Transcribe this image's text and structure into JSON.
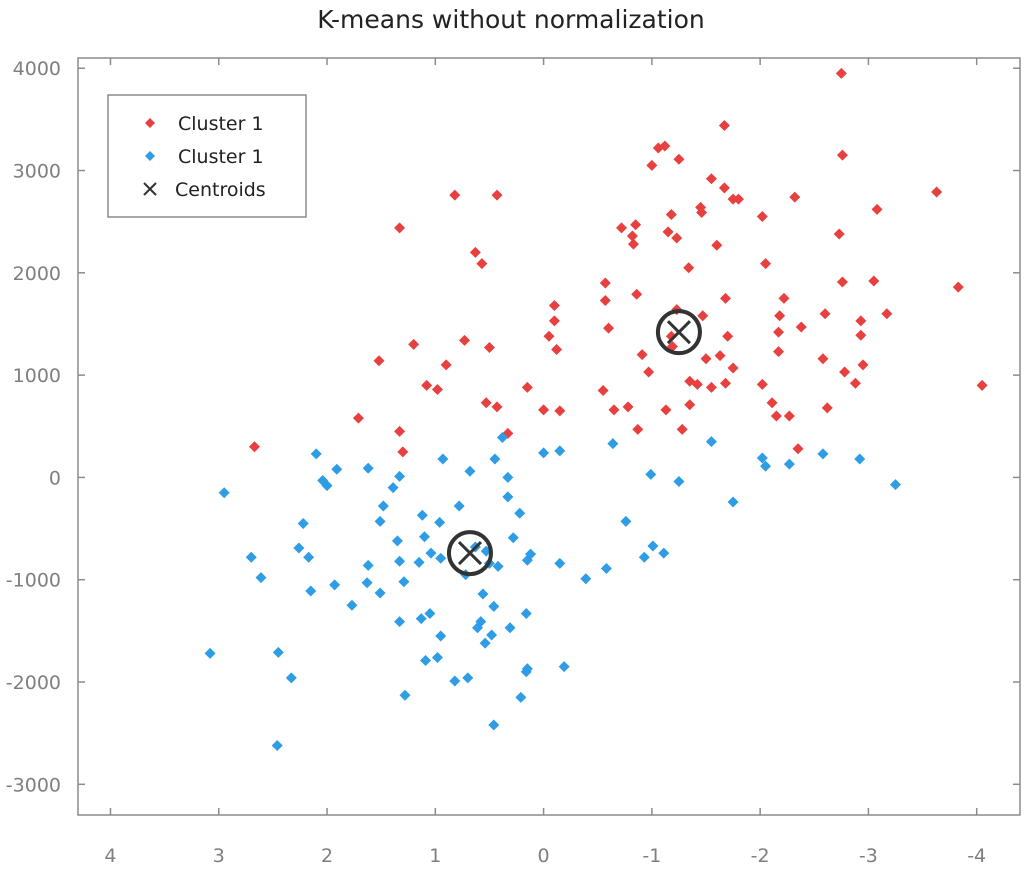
{
  "chart_data": {
    "type": "scatter",
    "title": "K-means without normalization",
    "xlabel": "",
    "ylabel": "",
    "xlim": [
      4.3,
      -4.4
    ],
    "ylim": [
      -3300,
      4100
    ],
    "x_ticks": [
      4,
      3,
      2,
      1,
      0,
      -1,
      -2,
      -3,
      -4
    ],
    "x_tick_labels": [
      "4",
      "3",
      "2",
      "1",
      "0",
      "-1",
      "-2",
      "-3",
      "-4"
    ],
    "y_ticks": [
      -3000,
      -2000,
      -1000,
      0,
      1000,
      2000,
      3000,
      4000
    ],
    "y_tick_labels": [
      "-3000",
      "-2000",
      "-1000",
      "0",
      "1000",
      "2000",
      "3000",
      "4000"
    ],
    "grid": false,
    "legend_position": "top-left",
    "series": [
      {
        "name": "Cluster 1",
        "color": "#e8403f",
        "marker": "diamond",
        "points": [
          [
            2.67,
            300
          ],
          [
            1.71,
            580
          ],
          [
            1.52,
            1140
          ],
          [
            1.33,
            2440
          ],
          [
            1.33,
            450
          ],
          [
            1.3,
            250
          ],
          [
            1.2,
            1300
          ],
          [
            1.08,
            900
          ],
          [
            0.98,
            860
          ],
          [
            0.9,
            1100
          ],
          [
            0.82,
            2760
          ],
          [
            0.73,
            1340
          ],
          [
            0.63,
            2200
          ],
          [
            0.57,
            2090
          ],
          [
            0.53,
            730
          ],
          [
            0.5,
            1270
          ],
          [
            0.43,
            2760
          ],
          [
            0.43,
            690
          ],
          [
            0.33,
            430
          ],
          [
            0.15,
            880
          ],
          [
            0.0,
            660
          ],
          [
            -0.05,
            1380
          ],
          [
            -0.1,
            1680
          ],
          [
            -0.1,
            1530
          ],
          [
            -0.12,
            1250
          ],
          [
            -0.15,
            650
          ],
          [
            -0.55,
            850
          ],
          [
            -0.57,
            1900
          ],
          [
            -0.57,
            1730
          ],
          [
            -0.6,
            1460
          ],
          [
            -0.65,
            660
          ],
          [
            -0.72,
            2440
          ],
          [
            -0.78,
            690
          ],
          [
            -0.82,
            2360
          ],
          [
            -0.83,
            2280
          ],
          [
            -0.85,
            2470
          ],
          [
            -0.86,
            1790
          ],
          [
            -0.87,
            470
          ],
          [
            -0.91,
            1200
          ],
          [
            -0.97,
            1030
          ],
          [
            -1.0,
            3050
          ],
          [
            -1.06,
            3220
          ],
          [
            -1.12,
            3240
          ],
          [
            -1.13,
            660
          ],
          [
            -1.15,
            2400
          ],
          [
            -1.18,
            2570
          ],
          [
            -1.18,
            1380
          ],
          [
            -1.19,
            1280
          ],
          [
            -1.23,
            1640
          ],
          [
            -1.23,
            2340
          ],
          [
            -1.25,
            3110
          ],
          [
            -1.28,
            470
          ],
          [
            -1.34,
            2050
          ],
          [
            -1.35,
            940
          ],
          [
            -1.35,
            710
          ],
          [
            -1.42,
            910
          ],
          [
            -1.45,
            2640
          ],
          [
            -1.46,
            2590
          ],
          [
            -1.47,
            1580
          ],
          [
            -1.5,
            1160
          ],
          [
            -1.55,
            2920
          ],
          [
            -1.55,
            880
          ],
          [
            -1.6,
            2270
          ],
          [
            -1.63,
            1190
          ],
          [
            -1.67,
            3440
          ],
          [
            -1.67,
            2830
          ],
          [
            -1.68,
            1750
          ],
          [
            -1.68,
            920
          ],
          [
            -1.7,
            1380
          ],
          [
            -1.75,
            2720
          ],
          [
            -1.75,
            1070
          ],
          [
            -1.8,
            2720
          ],
          [
            -2.02,
            2550
          ],
          [
            -2.02,
            910
          ],
          [
            -2.05,
            2090
          ],
          [
            -2.11,
            730
          ],
          [
            -2.15,
            600
          ],
          [
            -2.17,
            1420
          ],
          [
            -2.17,
            1230
          ],
          [
            -2.18,
            1580
          ],
          [
            -2.22,
            1750
          ],
          [
            -2.27,
            600
          ],
          [
            -2.32,
            2740
          ],
          [
            -2.35,
            280
          ],
          [
            -2.38,
            1470
          ],
          [
            -2.58,
            1160
          ],
          [
            -2.6,
            1600
          ],
          [
            -2.62,
            680
          ],
          [
            -2.73,
            2380
          ],
          [
            -2.75,
            3950
          ],
          [
            -2.76,
            3150
          ],
          [
            -2.76,
            1910
          ],
          [
            -2.78,
            1030
          ],
          [
            -2.88,
            920
          ],
          [
            -2.93,
            1390
          ],
          [
            -2.93,
            1530
          ],
          [
            -2.95,
            1100
          ],
          [
            -3.05,
            1920
          ],
          [
            -3.08,
            2620
          ],
          [
            -3.17,
            1600
          ],
          [
            -3.63,
            2790
          ],
          [
            -3.83,
            1860
          ],
          [
            -4.05,
            900
          ]
        ]
      },
      {
        "name": "Cluster 1",
        "color": "#2e9de5",
        "marker": "diamond",
        "points": [
          [
            3.08,
            -1720
          ],
          [
            2.95,
            -150
          ],
          [
            2.7,
            -780
          ],
          [
            2.61,
            -980
          ],
          [
            2.46,
            -2620
          ],
          [
            2.45,
            -1710
          ],
          [
            2.33,
            -1960
          ],
          [
            2.26,
            -690
          ],
          [
            2.22,
            -450
          ],
          [
            2.17,
            -780
          ],
          [
            2.15,
            -1110
          ],
          [
            2.1,
            230
          ],
          [
            2.04,
            -30
          ],
          [
            2.0,
            -80
          ],
          [
            1.93,
            -1050
          ],
          [
            1.91,
            80
          ],
          [
            1.77,
            -1250
          ],
          [
            1.63,
            -1030
          ],
          [
            1.62,
            -860
          ],
          [
            1.62,
            90
          ],
          [
            1.51,
            -1130
          ],
          [
            1.51,
            -430
          ],
          [
            1.48,
            -280
          ],
          [
            1.39,
            -100
          ],
          [
            1.35,
            -620
          ],
          [
            1.33,
            -1410
          ],
          [
            1.33,
            -820
          ],
          [
            1.33,
            10
          ],
          [
            1.29,
            -1020
          ],
          [
            1.28,
            -2130
          ],
          [
            1.15,
            -830
          ],
          [
            1.13,
            -1380
          ],
          [
            1.12,
            -370
          ],
          [
            1.1,
            -580
          ],
          [
            1.09,
            -1790
          ],
          [
            1.05,
            -1330
          ],
          [
            1.04,
            -740
          ],
          [
            0.98,
            -1760
          ],
          [
            0.96,
            -440
          ],
          [
            0.95,
            -1550
          ],
          [
            0.95,
            -790
          ],
          [
            0.93,
            180
          ],
          [
            0.82,
            -1990
          ],
          [
            0.78,
            -280
          ],
          [
            0.72,
            -950
          ],
          [
            0.7,
            -1960
          ],
          [
            0.68,
            60
          ],
          [
            0.63,
            -680
          ],
          [
            0.61,
            -1470
          ],
          [
            0.58,
            -1410
          ],
          [
            0.56,
            -1140
          ],
          [
            0.54,
            -1620
          ],
          [
            0.53,
            -720
          ],
          [
            0.5,
            -840
          ],
          [
            0.48,
            -1540
          ],
          [
            0.46,
            -2420
          ],
          [
            0.46,
            -1260
          ],
          [
            0.45,
            180
          ],
          [
            0.42,
            -870
          ],
          [
            0.38,
            390
          ],
          [
            0.33,
            -190
          ],
          [
            0.33,
            0
          ],
          [
            0.31,
            -1470
          ],
          [
            0.28,
            -590
          ],
          [
            0.22,
            -350
          ],
          [
            0.21,
            -2150
          ],
          [
            0.16,
            -1330
          ],
          [
            0.16,
            -1900
          ],
          [
            0.15,
            -1870
          ],
          [
            0.15,
            -810
          ],
          [
            0.12,
            -750
          ],
          [
            0.0,
            240
          ],
          [
            -0.15,
            260
          ],
          [
            -0.15,
            -840
          ],
          [
            -0.19,
            -1850
          ],
          [
            -0.39,
            -990
          ],
          [
            -0.58,
            -890
          ],
          [
            -0.64,
            330
          ],
          [
            -0.76,
            -430
          ],
          [
            -0.93,
            -780
          ],
          [
            -0.99,
            30
          ],
          [
            -1.01,
            -670
          ],
          [
            -1.11,
            -740
          ],
          [
            -1.25,
            -40
          ],
          [
            -1.55,
            350
          ],
          [
            -1.75,
            -240
          ],
          [
            -2.02,
            190
          ],
          [
            -2.05,
            110
          ],
          [
            -2.27,
            130
          ],
          [
            -2.58,
            230
          ],
          [
            -2.92,
            180
          ],
          [
            -3.25,
            -70
          ]
        ]
      },
      {
        "name": "Centroids",
        "color": "#333333",
        "marker": "x",
        "points": [
          [
            -1.25,
            1420
          ],
          [
            0.68,
            -740
          ]
        ]
      }
    ]
  },
  "legend": {
    "items": [
      {
        "label": "Cluster 1",
        "color": "#e8403f",
        "marker": "diamond"
      },
      {
        "label": "Cluster 1",
        "color": "#2e9de5",
        "marker": "diamond"
      },
      {
        "label": "Centroids",
        "color": "#333333",
        "marker": "x"
      }
    ]
  }
}
